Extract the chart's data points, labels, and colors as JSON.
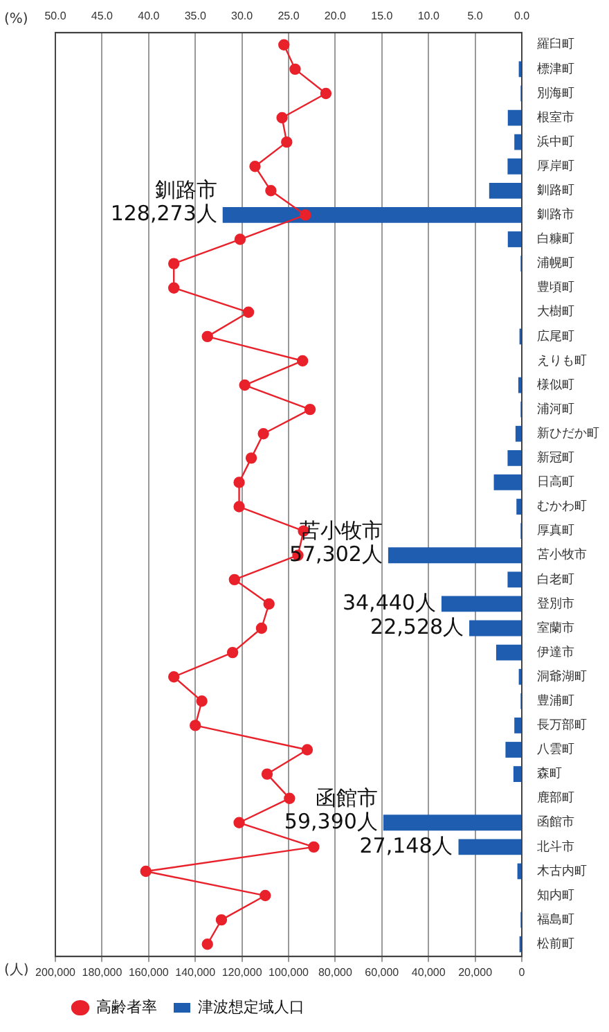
{
  "chart_data": {
    "type": "bar",
    "orientation": "horizontal",
    "categories": [
      "羅臼町",
      "標津町",
      "別海町",
      "根室市",
      "浜中町",
      "厚岸町",
      "釧路町",
      "釧路市",
      "白糠町",
      "浦幌町",
      "豊頃町",
      "大樹町",
      "広尾町",
      "えりも町",
      "様似町",
      "浦河町",
      "新ひだか町",
      "新冠町",
      "日高町",
      "むかわ町",
      "厚真町",
      "苫小牧市",
      "白老町",
      "登別市",
      "室蘭市",
      "伊達市",
      "洞爺湖町",
      "豊浦町",
      "長万部町",
      "八雲町",
      "森町",
      "鹿部町",
      "函館市",
      "北斗市",
      "木古内町",
      "知内町",
      "福島町",
      "松前町"
    ],
    "series": [
      {
        "name": "津波想定域人口",
        "color": "#1f5db0",
        "values": [
          300,
          1300,
          500,
          6000,
          3200,
          6100,
          14000,
          128273,
          6000,
          500,
          300,
          300,
          1000,
          300,
          1500,
          500,
          2700,
          6100,
          12000,
          2300,
          500,
          57302,
          6100,
          34440,
          22528,
          11000,
          1300,
          500,
          3200,
          7000,
          3600,
          300,
          59390,
          27148,
          1900,
          300,
          500,
          1000
        ],
        "value_labels": [
          null,
          null,
          null,
          null,
          null,
          null,
          null,
          "128,273人",
          null,
          null,
          null,
          null,
          null,
          null,
          null,
          null,
          null,
          null,
          null,
          null,
          null,
          "57,302人",
          null,
          "34,440人",
          "22,528人",
          null,
          null,
          null,
          null,
          null,
          null,
          null,
          "59,390人",
          "27,148人",
          null,
          null,
          null,
          null
        ]
      },
      {
        "name": "高齢者率",
        "type": "line",
        "axis": "x2",
        "color": "#e8212a",
        "values": [
          25.5,
          24.3,
          21.0,
          25.7,
          25.2,
          28.6,
          26.9,
          23.2,
          30.2,
          37.3,
          37.3,
          29.3,
          33.7,
          23.5,
          29.7,
          22.7,
          27.7,
          29.0,
          30.3,
          30.3,
          23.4,
          24.0,
          30.8,
          27.1,
          27.9,
          31.0,
          37.3,
          34.3,
          35.0,
          23.0,
          27.3,
          24.9,
          30.3,
          22.3,
          40.3,
          27.5,
          32.2,
          33.7
        ]
      }
    ],
    "xlabel": "(人)",
    "x2label": "(%)",
    "xlim": [
      200000,
      0
    ],
    "xticks": [
      0,
      {
        "value": 20000,
        "label": "20,000"
      },
      {
        "value": 40000,
        "label": "40,000"
      },
      {
        "value": 60000,
        "label": "60,000"
      },
      {
        "value": 80000,
        "label": "80,000"
      },
      {
        "value": 100000,
        "label": "100,000"
      },
      {
        "value": 120000,
        "label": "120,000"
      },
      {
        "value": 140000,
        "label": "140,000"
      },
      {
        "value": 160000,
        "label": "160,000"
      },
      {
        "value": 180000,
        "label": "180,000"
      },
      {
        "value": 200000,
        "label": "200,000"
      }
    ],
    "x2lim": [
      50,
      0
    ],
    "x2ticks": [
      {
        "value": 0,
        "label": "0.0"
      },
      {
        "value": 5,
        "label": "5.0"
      },
      {
        "value": 10,
        "label": "10.0"
      },
      {
        "value": 15,
        "label": "15.0"
      },
      {
        "value": 20,
        "label": "20.0"
      },
      {
        "value": 25,
        "label": "25.0"
      },
      {
        "value": 30,
        "label": "30.0"
      },
      {
        "value": 35,
        "label": "35.0"
      },
      {
        "value": 40,
        "label": "40.0"
      },
      {
        "value": 45,
        "label": "45.0"
      },
      {
        "value": 50,
        "label": "50.0"
      }
    ],
    "annotations": [
      {
        "text": "函館市",
        "x": 59390,
        "y": "函館市"
      },
      {
        "text": "苫小牧市",
        "x": 57302,
        "y": "苫小牧市"
      },
      {
        "text": "釧路市",
        "x": 128273,
        "y": "釧路市"
      }
    ],
    "grid": "x",
    "legend": "bottom left",
    "marker": "circle"
  }
}
